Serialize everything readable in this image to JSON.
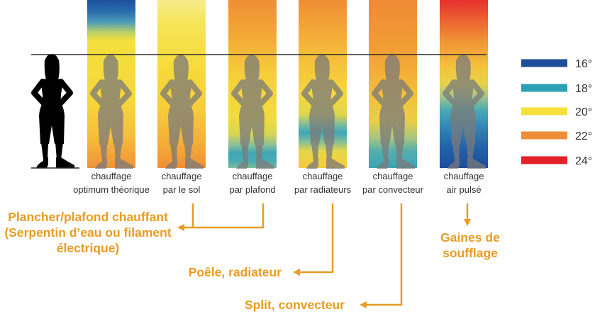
{
  "bars": [
    {
      "line1": "chauffage",
      "line2": "optimum théorique"
    },
    {
      "line1": "chauffage",
      "line2": "par le sol"
    },
    {
      "line1": "chauffage",
      "line2": "par plafond"
    },
    {
      "line1": "chauffage",
      "line2": "par radiateurs"
    },
    {
      "line1": "chauffage",
      "line2": "par convecteur"
    },
    {
      "line1": "chauffage",
      "line2": "air pulsé"
    }
  ],
  "legend": [
    {
      "label": "16°",
      "color": "#1E4D9B"
    },
    {
      "label": "18°",
      "color": "#2AA2B4"
    },
    {
      "label": "20°",
      "color": "#F6E03B"
    },
    {
      "label": "22°",
      "color": "#EF8E38"
    },
    {
      "label": "24°",
      "color": "#E32129"
    }
  ],
  "callouts": {
    "plancher_plafond": [
      "Plancher/plafond chauffant",
      "(Serpentin d’eau ou filament",
      "électrique)"
    ],
    "poele_radiateur": "Poêle, radiateur",
    "split_convecteur": "Split, convecteur",
    "gaines": [
      "Gaines de",
      "soufflage"
    ]
  },
  "colors": {
    "callout": "#E89C22",
    "label_text": "#333333",
    "silhouette": "#000000",
    "overlay_silhouette": "#7A7A7A"
  }
}
